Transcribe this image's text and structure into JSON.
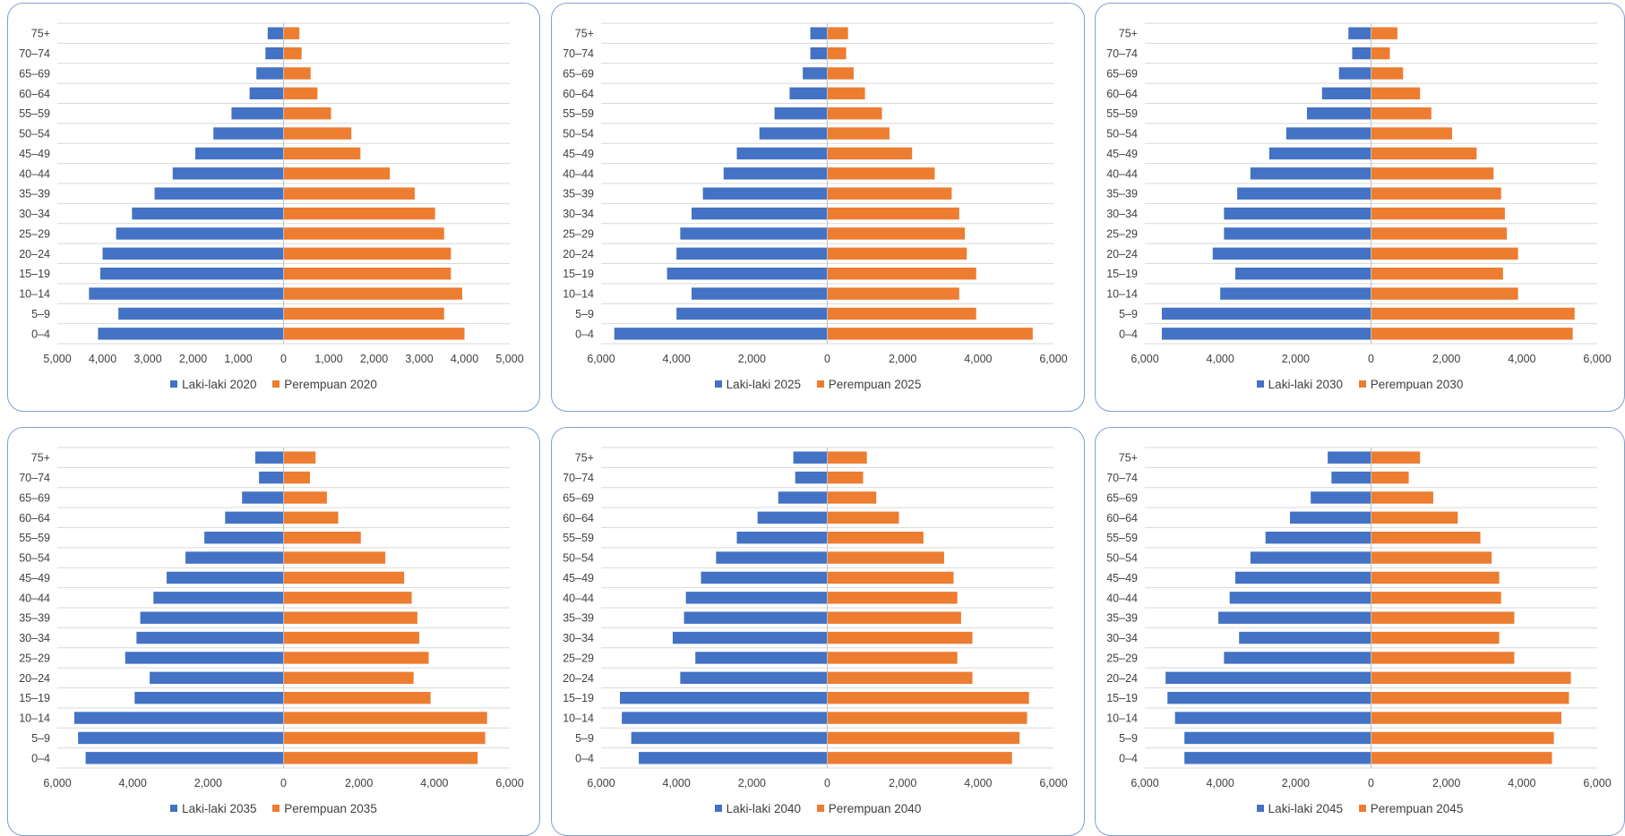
{
  "colors": {
    "male": "#4472C4",
    "female": "#ED7D31",
    "grid": "#d9d9d9",
    "text": "#404040"
  },
  "chart_data": [
    {
      "type": "bar",
      "orientation": "horizontal",
      "categories": [
        "0–4",
        "5–9",
        "10–14",
        "15–19",
        "20–24",
        "25–29",
        "30–34",
        "35–39",
        "40–44",
        "45–49",
        "50–54",
        "55–59",
        "60–64",
        "65–69",
        "70–74",
        "75+"
      ],
      "series": [
        {
          "name": "Laki-laki 2020",
          "values": [
            4100,
            3650,
            4300,
            4050,
            4000,
            3700,
            3350,
            2850,
            2450,
            1950,
            1550,
            1150,
            750,
            600,
            400,
            350
          ]
        },
        {
          "name": "Perempuan 2020",
          "values": [
            4000,
            3550,
            3950,
            3700,
            3700,
            3550,
            3350,
            2900,
            2350,
            1700,
            1500,
            1050,
            750,
            600,
            400,
            350
          ]
        }
      ],
      "xlim": [
        -5000,
        5000
      ],
      "xticks": [
        -5000,
        -4000,
        -3000,
        -2000,
        -1000,
        0,
        1000,
        2000,
        3000,
        4000,
        5000
      ],
      "xtick_labels": [
        "5,000",
        "4,000",
        "3,000",
        "2,000",
        "1,000",
        "0",
        "1,000",
        "2,000",
        "3,000",
        "4,000",
        "5,000"
      ],
      "legend": [
        "Laki-laki 2020",
        "Perempuan 2020"
      ],
      "legend_position": "bottom",
      "grid": true
    },
    {
      "type": "bar",
      "orientation": "horizontal",
      "categories": [
        "0–4",
        "5–9",
        "10–14",
        "15–19",
        "20–24",
        "25–29",
        "30–34",
        "35–39",
        "40–44",
        "45–49",
        "50–54",
        "55–59",
        "60–64",
        "65–69",
        "70–74",
        "75+"
      ],
      "series": [
        {
          "name": "Laki-laki 2025",
          "values": [
            5650,
            4000,
            3600,
            4250,
            4000,
            3900,
            3600,
            3300,
            2750,
            2400,
            1800,
            1400,
            1000,
            650,
            450,
            450
          ]
        },
        {
          "name": "Perempuan 2025",
          "values": [
            5450,
            3950,
            3500,
            3950,
            3700,
            3650,
            3500,
            3300,
            2850,
            2250,
            1650,
            1450,
            1000,
            700,
            500,
            550
          ]
        }
      ],
      "xlim": [
        -6000,
        6000
      ],
      "xticks": [
        -6000,
        -4000,
        -2000,
        0,
        2000,
        4000,
        6000
      ],
      "xtick_labels": [
        "6,000",
        "4,000",
        "2,000",
        "0",
        "2,000",
        "4,000",
        "6,000"
      ],
      "legend": [
        "Laki-laki 2025",
        "Perempuan 2025"
      ],
      "legend_position": "bottom",
      "grid": true
    },
    {
      "type": "bar",
      "orientation": "horizontal",
      "categories": [
        "0–4",
        "5–9",
        "10–14",
        "15–19",
        "20–24",
        "25–29",
        "30–34",
        "35–39",
        "40–44",
        "45–49",
        "50–54",
        "55–59",
        "60–64",
        "65–69",
        "70–74",
        "75+"
      ],
      "series": [
        {
          "name": "Laki-laki 2030",
          "values": [
            5550,
            5550,
            4000,
            3600,
            4200,
            3900,
            3900,
            3550,
            3200,
            2700,
            2250,
            1700,
            1300,
            850,
            500,
            600
          ]
        },
        {
          "name": "Perempuan 2030",
          "values": [
            5350,
            5400,
            3900,
            3500,
            3900,
            3600,
            3550,
            3450,
            3250,
            2800,
            2150,
            1600,
            1300,
            850,
            500,
            700
          ]
        }
      ],
      "xlim": [
        -6000,
        6000
      ],
      "xticks": [
        -6000,
        -4000,
        -2000,
        0,
        2000,
        4000,
        6000
      ],
      "xtick_labels": [
        "6,000",
        "4,000",
        "2,000",
        "0",
        "2,000",
        "4,000",
        "6,000"
      ],
      "legend": [
        "Laki-laki 2030",
        "Perempuan 2030"
      ],
      "legend_position": "bottom",
      "grid": true
    },
    {
      "type": "bar",
      "orientation": "horizontal",
      "categories": [
        "0–4",
        "5–9",
        "10–14",
        "15–19",
        "20–24",
        "25–29",
        "30–34",
        "35–39",
        "40–44",
        "45–49",
        "50–54",
        "55–59",
        "60–64",
        "65–69",
        "70–74",
        "75+"
      ],
      "series": [
        {
          "name": "Laki-laki 2035",
          "values": [
            5250,
            5450,
            5550,
            3950,
            3550,
            4200,
            3900,
            3800,
            3450,
            3100,
            2600,
            2100,
            1550,
            1100,
            650,
            750
          ]
        },
        {
          "name": "Perempuan 2035",
          "values": [
            5150,
            5350,
            5400,
            3900,
            3450,
            3850,
            3600,
            3550,
            3400,
            3200,
            2700,
            2050,
            1450,
            1150,
            700,
            850
          ]
        }
      ],
      "xlim": [
        -6000,
        6000
      ],
      "xticks": [
        -6000,
        -4000,
        -2000,
        0,
        2000,
        4000,
        6000
      ],
      "xtick_labels": [
        "6,000",
        "4,000",
        "2,000",
        "0",
        "2,000",
        "4,000",
        "6,000"
      ],
      "legend": [
        "Laki-laki 2035",
        "Perempuan 2035"
      ],
      "legend_position": "bottom",
      "grid": true
    },
    {
      "type": "bar",
      "orientation": "horizontal",
      "categories": [
        "0–4",
        "5–9",
        "10–14",
        "15–19",
        "20–24",
        "25–29",
        "30–34",
        "35–39",
        "40–44",
        "45–49",
        "50–54",
        "55–59",
        "60–64",
        "65–69",
        "70–74",
        "75+"
      ],
      "series": [
        {
          "name": "Laki-laki 2040",
          "values": [
            5000,
            5200,
            5450,
            5500,
            3900,
            3500,
            4100,
            3800,
            3750,
            3350,
            2950,
            2400,
            1850,
            1300,
            850,
            900
          ]
        },
        {
          "name": "Perempuan 2040",
          "values": [
            4900,
            5100,
            5300,
            5350,
            3850,
            3450,
            3850,
            3550,
            3450,
            3350,
            3100,
            2550,
            1900,
            1300,
            950,
            1050
          ]
        }
      ],
      "xlim": [
        -6000,
        6000
      ],
      "xticks": [
        -6000,
        -4000,
        -2000,
        0,
        2000,
        4000,
        6000
      ],
      "xtick_labels": [
        "6,000",
        "4,000",
        "2,000",
        "0",
        "2,000",
        "4,000",
        "6,000"
      ],
      "legend": [
        "Laki-laki 2040",
        "Perempuan 2040"
      ],
      "legend_position": "bottom",
      "grid": true
    },
    {
      "type": "bar",
      "orientation": "horizontal",
      "categories": [
        "0–4",
        "5–9",
        "10–14",
        "15–19",
        "20–24",
        "25–29",
        "30–34",
        "35–39",
        "40–44",
        "45–49",
        "50–54",
        "55–59",
        "60–64",
        "65–69",
        "70–74",
        "75+"
      ],
      "series": [
        {
          "name": "Laki-laki 2045",
          "values": [
            4950,
            4950,
            5200,
            5400,
            5450,
            3900,
            3500,
            4050,
            3750,
            3600,
            3200,
            2800,
            2150,
            1600,
            1050,
            1150
          ]
        },
        {
          "name": "Perempuan 2045",
          "values": [
            4800,
            4850,
            5050,
            5250,
            5300,
            3800,
            3400,
            3800,
            3450,
            3400,
            3200,
            2900,
            2300,
            1650,
            1000,
            1300
          ]
        }
      ],
      "xlim": [
        -6000,
        6000
      ],
      "xticks": [
        -6000,
        -4000,
        -2000,
        0,
        2000,
        4000,
        6000
      ],
      "xtick_labels": [
        "6,000",
        "4,000",
        "2,000",
        "0",
        "2,000",
        "4,000",
        "6,000"
      ],
      "legend": [
        "Laki-laki 2045",
        "Perempuan 2045"
      ],
      "legend_position": "bottom",
      "grid": true
    }
  ]
}
